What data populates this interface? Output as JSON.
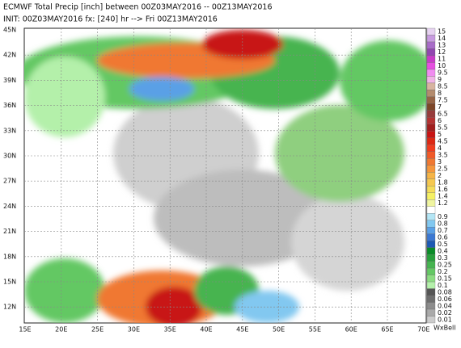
{
  "header": {
    "title": "ECMWF Total Precip [inch] between 00Z03MAY2016 -- 00Z13MAY2016",
    "subtitle": "INIT: 00Z03MAY2016 fx: [240] hr --> Fri 00Z13MAY2016"
  },
  "map": {
    "lat_labels": [
      "45N",
      "42N",
      "39N",
      "36N",
      "33N",
      "30N",
      "27N",
      "24N",
      "21N",
      "18N",
      "15N",
      "12N"
    ],
    "lon_labels": [
      "15E",
      "20E",
      "25E",
      "30E",
      "35E",
      "40E",
      "45E",
      "50E",
      "55E",
      "60E",
      "65E",
      "70E"
    ]
  },
  "legend": {
    "items": [
      {
        "label": "15",
        "color": "#e6d2f0"
      },
      {
        "label": "14",
        "color": "#c89be0"
      },
      {
        "label": "13",
        "color": "#a86cc8"
      },
      {
        "label": "12",
        "color": "#9146b0"
      },
      {
        "label": "11",
        "color": "#c83cc8"
      },
      {
        "label": "10",
        "color": "#e650e0"
      },
      {
        "label": "9.5",
        "color": "#f08cf0"
      },
      {
        "label": "9",
        "color": "#f0b4e6"
      },
      {
        "label": "8.5",
        "color": "#d7b4a0"
      },
      {
        "label": "8",
        "color": "#b48c6e"
      },
      {
        "label": "7.5",
        "color": "#966446"
      },
      {
        "label": "7",
        "color": "#7d4628"
      },
      {
        "label": "6.5",
        "color": "#963c3c"
      },
      {
        "label": "6",
        "color": "#b43232"
      },
      {
        "label": "5.5",
        "color": "#a01e1e"
      },
      {
        "label": "5",
        "color": "#c81414"
      },
      {
        "label": "4.5",
        "color": "#dc2814"
      },
      {
        "label": "4",
        "color": "#f03c1e"
      },
      {
        "label": "3.5",
        "color": "#f05a28"
      },
      {
        "label": "3",
        "color": "#f07832"
      },
      {
        "label": "2.5",
        "color": "#f5963c"
      },
      {
        "label": "2",
        "color": "#f5b446"
      },
      {
        "label": "1.8",
        "color": "#f5c850"
      },
      {
        "label": "1.6",
        "color": "#f5dc5a"
      },
      {
        "label": "1.4",
        "color": "#f5f064"
      },
      {
        "label": "1.2",
        "color": "#f0f5a0"
      },
      {
        "label": null,
        "color": "#ffffff"
      },
      {
        "label": "0.9",
        "color": "#b4e6f5"
      },
      {
        "label": "0.8",
        "color": "#82c8f0"
      },
      {
        "label": "0.7",
        "color": "#5aa0e6"
      },
      {
        "label": "0.6",
        "color": "#3c78d2"
      },
      {
        "label": "0.5",
        "color": "#1e5ab4"
      },
      {
        "label": "0.4",
        "color": "#0a8c28"
      },
      {
        "label": "0.3",
        "color": "#28a03c"
      },
      {
        "label": "0.25",
        "color": "#46b450"
      },
      {
        "label": "0.2",
        "color": "#64c864"
      },
      {
        "label": "0.15",
        "color": "#8cdc82"
      },
      {
        "label": "0.1",
        "color": "#b4f0aa"
      },
      {
        "label": "0.08",
        "color": "#555555"
      },
      {
        "label": "0.06",
        "color": "#6e6e6e"
      },
      {
        "label": "0.04",
        "color": "#8c8c8c"
      },
      {
        "label": "0.02",
        "color": "#aaaaaa"
      },
      {
        "label": "0.01",
        "color": "#cccccc"
      }
    ],
    "credit": "WxBell"
  }
}
